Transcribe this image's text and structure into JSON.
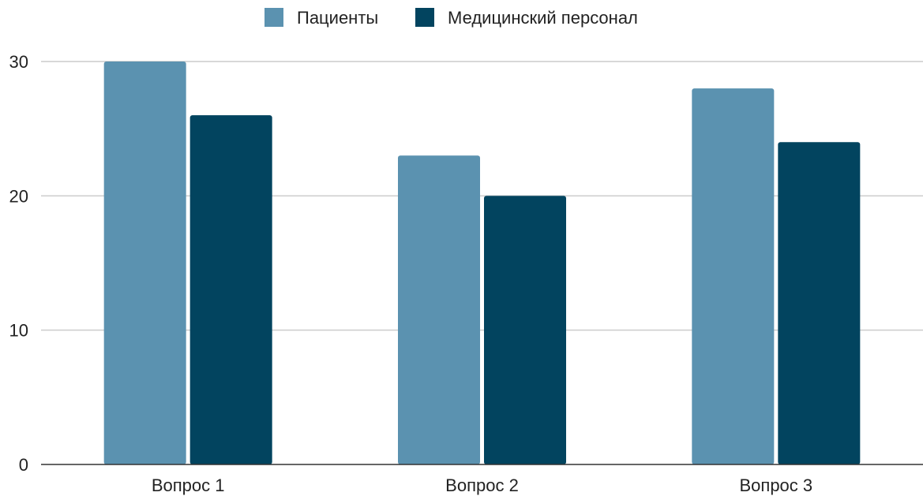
{
  "chart_data": {
    "type": "bar",
    "title": "",
    "xlabel": "",
    "ylabel": "",
    "categories": [
      "Вопрос 1",
      "Вопрос 2",
      "Вопрос 3"
    ],
    "series": [
      {
        "name": "Пациенты",
        "values": [
          30,
          23,
          28
        ],
        "color": "#5b92b0"
      },
      {
        "name": "Медицинский персонал",
        "values": [
          26,
          20,
          24
        ],
        "color": "#02445f"
      }
    ],
    "ylim": [
      0,
      30
    ],
    "yticks": [
      0,
      10,
      20,
      30
    ],
    "ytick_labels": [
      "0",
      "10",
      "20",
      "30"
    ],
    "grid": true,
    "legend_position": "top-center"
  }
}
